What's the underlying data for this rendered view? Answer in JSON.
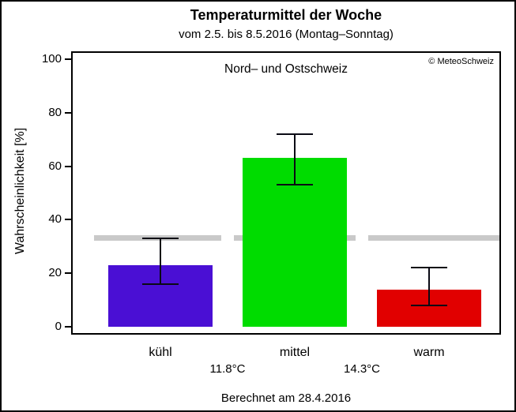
{
  "chart_data": {
    "type": "bar",
    "title": "Temperaturmittel der Woche",
    "subtitle": "vom 2.5. bis 8.5.2016 (Montag–Sonntag)",
    "panel_title": "Nord– und Ostschweiz",
    "copyright": "© MeteoSchweiz",
    "ylabel": "Wahrscheinlichkeit [%]",
    "footer": "Berechnet am 28.4.2016",
    "ylim": [
      0,
      100
    ],
    "yticks": [
      0,
      20,
      40,
      60,
      80,
      100
    ],
    "categories": [
      "kühl",
      "mittel",
      "warm"
    ],
    "values": [
      23,
      63,
      14
    ],
    "error_low": [
      16,
      53,
      8
    ],
    "error_high": [
      33,
      72,
      22
    ],
    "bar_colors": [
      "#4a0fd4",
      "#00dc00",
      "#e10000"
    ],
    "threshold_labels": [
      "11.8°C",
      "14.3°C"
    ],
    "reference_line": {
      "value": 33.3,
      "color": "#c9c9c9"
    },
    "grid": false,
    "legend_position": "none"
  }
}
